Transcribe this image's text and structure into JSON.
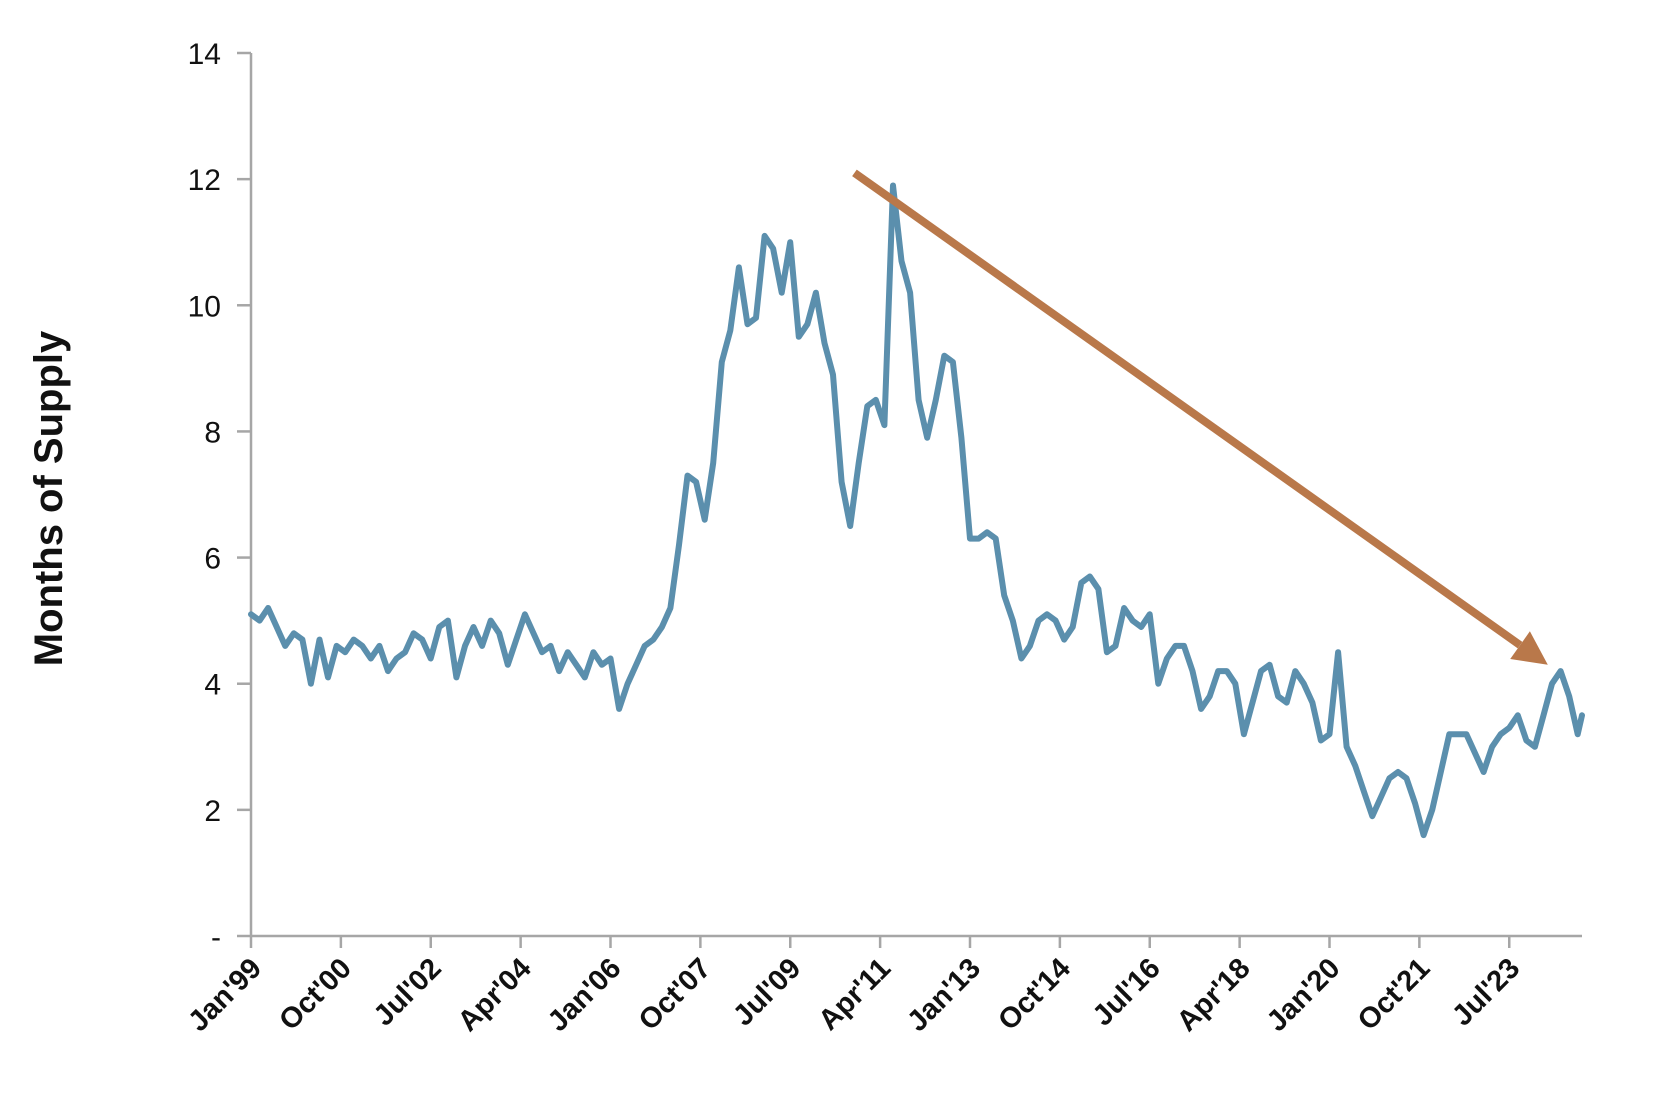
{
  "colors": {
    "series": "#5b8fad",
    "arrow": "#b9784a",
    "axis": "#a6a6a6",
    "text": "#111111"
  },
  "chart_data": {
    "type": "line",
    "title": "",
    "ylabel": "Months of Supply",
    "xlabel": "",
    "ylim": [
      0,
      14
    ],
    "yticks": [
      0,
      2,
      4,
      6,
      8,
      10,
      12,
      14
    ],
    "ytick_labels": [
      "-",
      "2",
      "4",
      "6",
      "8",
      "10",
      "12",
      "14"
    ],
    "x_range": [
      "1999-01",
      "2024-12"
    ],
    "xticks": [
      "1999-01",
      "2000-10",
      "2002-07",
      "2004-04",
      "2006-01",
      "2007-10",
      "2009-07",
      "2011-04",
      "2013-01",
      "2014-10",
      "2016-07",
      "2018-04",
      "2020-01",
      "2021-10",
      "2023-07"
    ],
    "xtick_labels": [
      "Jan'99",
      "Oct'00",
      "Jul'02",
      "Apr'04",
      "Jan'06",
      "Oct'07",
      "Jul'09",
      "Apr'11",
      "Jan'13",
      "Oct'14",
      "Jul'16",
      "Apr'18",
      "Jan'20",
      "Oct'21",
      "Jul'23"
    ],
    "grid": false,
    "legend": "none",
    "series": [
      {
        "points": [
          [
            "1999-01",
            5.1
          ],
          [
            "1999-03",
            5.0
          ],
          [
            "1999-05",
            5.2
          ],
          [
            "1999-07",
            4.9
          ],
          [
            "1999-09",
            4.6
          ],
          [
            "1999-11",
            4.8
          ],
          [
            "2000-01",
            4.7
          ],
          [
            "2000-03",
            4.0
          ],
          [
            "2000-05",
            4.7
          ],
          [
            "2000-07",
            4.1
          ],
          [
            "2000-09",
            4.6
          ],
          [
            "2000-11",
            4.5
          ],
          [
            "2001-01",
            4.7
          ],
          [
            "2001-03",
            4.6
          ],
          [
            "2001-05",
            4.4
          ],
          [
            "2001-07",
            4.6
          ],
          [
            "2001-09",
            4.2
          ],
          [
            "2001-11",
            4.4
          ],
          [
            "2002-01",
            4.5
          ],
          [
            "2002-03",
            4.8
          ],
          [
            "2002-05",
            4.7
          ],
          [
            "2002-07",
            4.4
          ],
          [
            "2002-09",
            4.9
          ],
          [
            "2002-11",
            5.0
          ],
          [
            "2003-01",
            4.1
          ],
          [
            "2003-03",
            4.6
          ],
          [
            "2003-05",
            4.9
          ],
          [
            "2003-07",
            4.6
          ],
          [
            "2003-09",
            5.0
          ],
          [
            "2003-11",
            4.8
          ],
          [
            "2004-01",
            4.3
          ],
          [
            "2004-03",
            4.7
          ],
          [
            "2004-05",
            5.1
          ],
          [
            "2004-07",
            4.8
          ],
          [
            "2004-09",
            4.5
          ],
          [
            "2004-11",
            4.6
          ],
          [
            "2005-01",
            4.2
          ],
          [
            "2005-03",
            4.5
          ],
          [
            "2005-05",
            4.3
          ],
          [
            "2005-07",
            4.1
          ],
          [
            "2005-09",
            4.5
          ],
          [
            "2005-11",
            4.3
          ],
          [
            "2006-01",
            4.4
          ],
          [
            "2006-03",
            3.6
          ],
          [
            "2006-05",
            4.0
          ],
          [
            "2006-07",
            4.3
          ],
          [
            "2006-09",
            4.6
          ],
          [
            "2006-11",
            4.7
          ],
          [
            "2007-01",
            4.9
          ],
          [
            "2007-03",
            5.2
          ],
          [
            "2007-05",
            6.2
          ],
          [
            "2007-07",
            7.3
          ],
          [
            "2007-09",
            7.2
          ],
          [
            "2007-11",
            6.6
          ],
          [
            "2008-01",
            7.5
          ],
          [
            "2008-03",
            9.1
          ],
          [
            "2008-05",
            9.6
          ],
          [
            "2008-07",
            10.6
          ],
          [
            "2008-09",
            9.7
          ],
          [
            "2008-11",
            9.8
          ],
          [
            "2009-01",
            11.1
          ],
          [
            "2009-03",
            10.9
          ],
          [
            "2009-05",
            10.2
          ],
          [
            "2009-07",
            11.0
          ],
          [
            "2009-09",
            9.5
          ],
          [
            "2009-11",
            9.7
          ],
          [
            "2010-01",
            10.2
          ],
          [
            "2010-03",
            9.4
          ],
          [
            "2010-05",
            8.9
          ],
          [
            "2010-07",
            7.2
          ],
          [
            "2010-09",
            6.5
          ],
          [
            "2010-11",
            7.5
          ],
          [
            "2011-01",
            8.4
          ],
          [
            "2011-03",
            8.5
          ],
          [
            "2011-05",
            8.1
          ],
          [
            "2011-07",
            11.9
          ],
          [
            "2011-09",
            10.7
          ],
          [
            "2011-11",
            10.2
          ],
          [
            "2012-01",
            8.5
          ],
          [
            "2012-03",
            7.9
          ],
          [
            "2012-05",
            8.5
          ],
          [
            "2012-07",
            9.2
          ],
          [
            "2012-09",
            9.1
          ],
          [
            "2012-11",
            7.9
          ],
          [
            "2013-01",
            6.3
          ],
          [
            "2013-03",
            6.3
          ],
          [
            "2013-05",
            6.4
          ],
          [
            "2013-07",
            6.3
          ],
          [
            "2013-09",
            5.4
          ],
          [
            "2013-11",
            5.0
          ],
          [
            "2014-01",
            4.4
          ],
          [
            "2014-03",
            4.6
          ],
          [
            "2014-05",
            5.0
          ],
          [
            "2014-07",
            5.1
          ],
          [
            "2014-09",
            5.0
          ],
          [
            "2014-11",
            4.7
          ],
          [
            "2015-01",
            4.9
          ],
          [
            "2015-03",
            5.6
          ],
          [
            "2015-05",
            5.7
          ],
          [
            "2015-07",
            5.5
          ],
          [
            "2015-09",
            4.5
          ],
          [
            "2015-11",
            4.6
          ],
          [
            "2016-01",
            5.2
          ],
          [
            "2016-03",
            5.0
          ],
          [
            "2016-05",
            4.9
          ],
          [
            "2016-07",
            5.1
          ],
          [
            "2016-09",
            4.0
          ],
          [
            "2016-11",
            4.4
          ],
          [
            "2017-01",
            4.6
          ],
          [
            "2017-03",
            4.6
          ],
          [
            "2017-05",
            4.2
          ],
          [
            "2017-07",
            3.6
          ],
          [
            "2017-09",
            3.8
          ],
          [
            "2017-11",
            4.2
          ],
          [
            "2018-01",
            4.2
          ],
          [
            "2018-03",
            4.0
          ],
          [
            "2018-05",
            3.2
          ],
          [
            "2018-07",
            3.7
          ],
          [
            "2018-09",
            4.2
          ],
          [
            "2018-11",
            4.3
          ],
          [
            "2019-01",
            3.8
          ],
          [
            "2019-03",
            3.7
          ],
          [
            "2019-05",
            4.2
          ],
          [
            "2019-07",
            4.0
          ],
          [
            "2019-09",
            3.7
          ],
          [
            "2019-11",
            3.1
          ],
          [
            "2020-01",
            3.2
          ],
          [
            "2020-03",
            4.5
          ],
          [
            "2020-05",
            3.0
          ],
          [
            "2020-07",
            2.7
          ],
          [
            "2020-09",
            2.3
          ],
          [
            "2020-11",
            1.9
          ],
          [
            "2021-01",
            2.2
          ],
          [
            "2021-03",
            2.5
          ],
          [
            "2021-05",
            2.6
          ],
          [
            "2021-07",
            2.5
          ],
          [
            "2021-09",
            2.1
          ],
          [
            "2021-11",
            1.6
          ],
          [
            "2022-01",
            2.0
          ],
          [
            "2022-03",
            2.6
          ],
          [
            "2022-05",
            3.2
          ],
          [
            "2022-07",
            3.2
          ],
          [
            "2022-09",
            3.2
          ],
          [
            "2022-11",
            2.9
          ],
          [
            "2023-01",
            2.6
          ],
          [
            "2023-03",
            3.0
          ],
          [
            "2023-05",
            3.2
          ],
          [
            "2023-07",
            3.3
          ],
          [
            "2023-09",
            3.5
          ],
          [
            "2023-11",
            3.1
          ],
          [
            "2024-01",
            3.0
          ],
          [
            "2024-03",
            3.5
          ],
          [
            "2024-05",
            4.0
          ],
          [
            "2024-07",
            4.2
          ],
          [
            "2024-09",
            3.8
          ],
          [
            "2024-11",
            3.2
          ],
          [
            "2024-12",
            3.5
          ]
        ]
      }
    ],
    "annotations": [
      {
        "type": "arrow",
        "from": [
          "2010-10",
          12.1
        ],
        "to": [
          "2024-04",
          4.3
        ]
      }
    ]
  }
}
